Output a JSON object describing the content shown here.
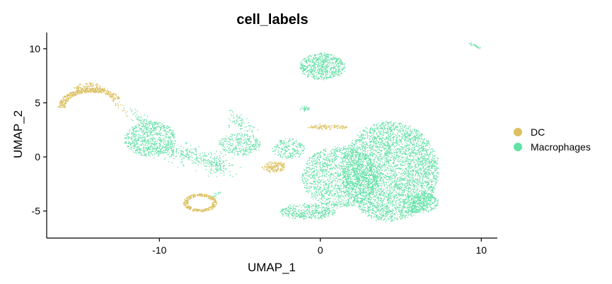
{
  "chart_data": {
    "type": "scatter",
    "title": "cell_labels",
    "xlabel": "UMAP_1",
    "ylabel": "UMAP_2",
    "xlim": [
      -17,
      11
    ],
    "ylim": [
      -7.5,
      11.5
    ],
    "x_ticks": [
      -10,
      0,
      10
    ],
    "x_tick_labels": [
      "-10",
      "0",
      "10"
    ],
    "y_ticks": [
      -5,
      0,
      5,
      10
    ],
    "y_tick_labels": [
      "-5",
      "0",
      "5",
      "10"
    ],
    "grid": false,
    "legend_position": "right",
    "series": [
      {
        "name": "DC",
        "color": "#DCC060",
        "clusters": [
          {
            "type": "arc",
            "cx": -14.2,
            "cy": 4.6,
            "r": 1.9,
            "a0": 30,
            "a1": 180,
            "thick": 0.45,
            "n": 420
          },
          {
            "type": "blob",
            "cx": -14.4,
            "cy": 6.4,
            "rx": 0.9,
            "ry": 0.45,
            "n": 140
          },
          {
            "type": "ring",
            "cx": -7.5,
            "cy": -4.2,
            "rx": 1.0,
            "ry": 0.8,
            "n": 380
          },
          {
            "type": "blob",
            "cx": -2.9,
            "cy": -0.9,
            "rx": 0.7,
            "ry": 0.5,
            "n": 170
          },
          {
            "type": "blob",
            "cx": 0.5,
            "cy": 2.8,
            "rx": 1.2,
            "ry": 0.2,
            "n": 120
          },
          {
            "type": "line",
            "x0": -13.4,
            "y0": 6.2,
            "x1": -12.0,
            "y1": 4.0,
            "spread": 0.12,
            "n": 35
          }
        ]
      },
      {
        "name": "Macrophages",
        "color": "#63E0A6",
        "clusters": [
          {
            "type": "blob",
            "cx": 4.3,
            "cy": -1.3,
            "rx": 3.0,
            "ry": 4.6,
            "n": 3800
          },
          {
            "type": "blob",
            "cx": 1.2,
            "cy": -1.8,
            "rx": 2.4,
            "ry": 2.8,
            "n": 1500
          },
          {
            "type": "blob",
            "cx": 6.2,
            "cy": -4.2,
            "rx": 1.1,
            "ry": 0.9,
            "n": 350
          },
          {
            "type": "blob",
            "cx": 0.1,
            "cy": 8.4,
            "rx": 1.4,
            "ry": 1.2,
            "n": 650
          },
          {
            "type": "blob",
            "cx": -0.8,
            "cy": -5.0,
            "rx": 1.7,
            "ry": 0.7,
            "n": 380
          },
          {
            "type": "blob",
            "cx": -10.6,
            "cy": 1.7,
            "rx": 1.6,
            "ry": 1.6,
            "n": 700
          },
          {
            "type": "line",
            "x0": -10.0,
            "y0": 0.8,
            "x1": -6.2,
            "y1": -0.6,
            "spread": 0.45,
            "n": 320
          },
          {
            "type": "blob",
            "cx": -5.0,
            "cy": 1.2,
            "rx": 1.3,
            "ry": 1.0,
            "n": 300
          },
          {
            "type": "line",
            "x0": -5.6,
            "y0": 4.0,
            "x1": -4.4,
            "y1": 2.4,
            "spread": 0.3,
            "n": 80
          },
          {
            "type": "blob",
            "cx": -2.0,
            "cy": 0.8,
            "rx": 1.0,
            "ry": 0.9,
            "n": 200
          },
          {
            "type": "line",
            "x0": -6.5,
            "y0": -0.5,
            "x1": -6.0,
            "y1": -1.2,
            "spread": 0.4,
            "n": 60
          },
          {
            "type": "line",
            "x0": -12.0,
            "y0": 4.2,
            "x1": -10.5,
            "y1": 3.0,
            "spread": 0.25,
            "n": 60
          },
          {
            "type": "line",
            "x0": -6.8,
            "y0": -3.6,
            "x1": -6.1,
            "y1": -3.2,
            "spread": 0.1,
            "n": 15
          },
          {
            "type": "blob",
            "cx": -1.0,
            "cy": 4.5,
            "rx": 0.3,
            "ry": 0.2,
            "n": 30
          },
          {
            "type": "line",
            "x0": 9.2,
            "y0": 10.6,
            "x1": 9.9,
            "y1": 10.1,
            "spread": 0.05,
            "n": 25
          }
        ]
      }
    ]
  }
}
